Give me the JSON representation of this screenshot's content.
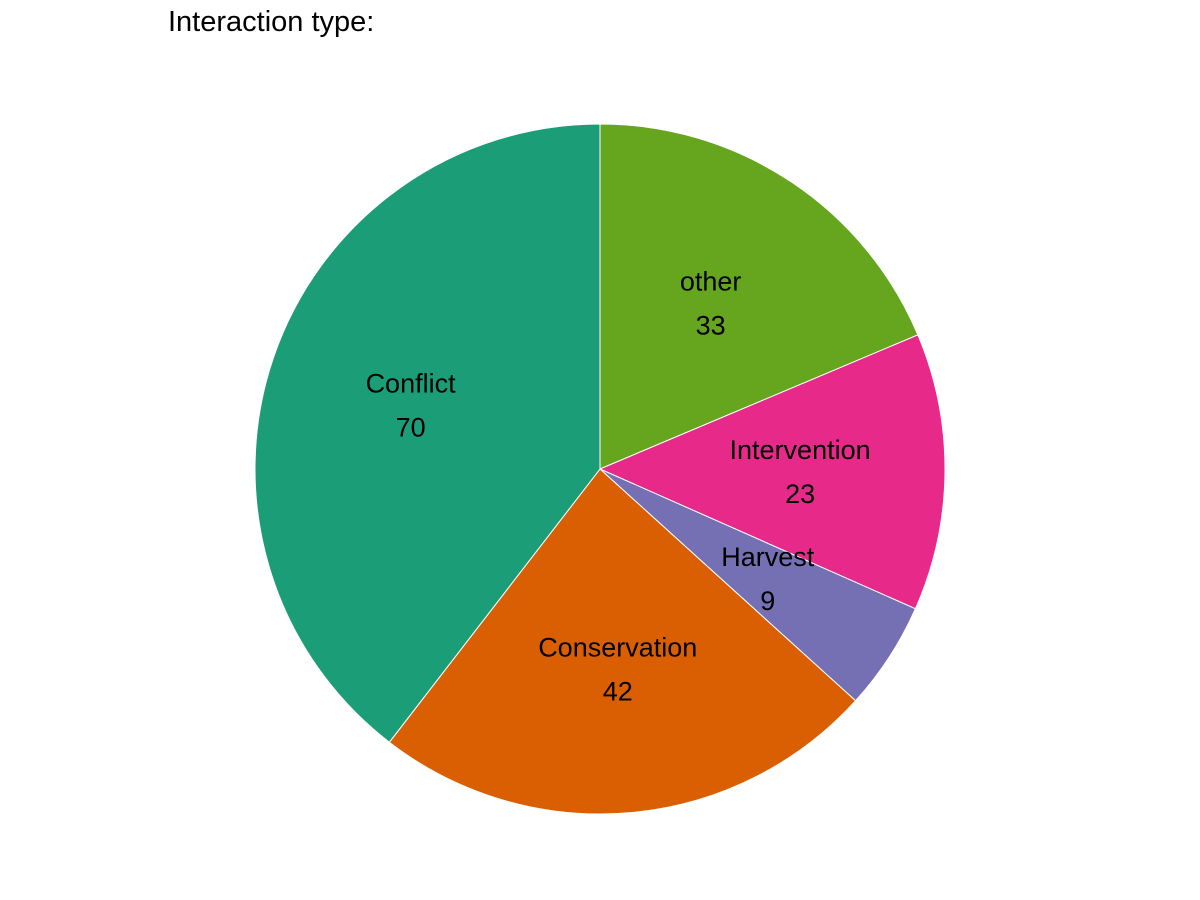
{
  "chart_data": {
    "type": "pie",
    "title": "Interaction type:",
    "slices": [
      {
        "label": "other",
        "value": 33,
        "color": "#66a61e"
      },
      {
        "label": "Intervention",
        "value": 23,
        "color": "#e7298a"
      },
      {
        "label": "Harvest",
        "value": 9,
        "color": "#7570b3"
      },
      {
        "label": "Conservation",
        "value": 42,
        "color": "#d95f02"
      },
      {
        "label": "Conflict",
        "value": 70,
        "color": "#1b9e77"
      }
    ],
    "start": "12 o'clock",
    "direction": "clockwise",
    "legend": "none",
    "slice_border_color": "#ffffff"
  }
}
